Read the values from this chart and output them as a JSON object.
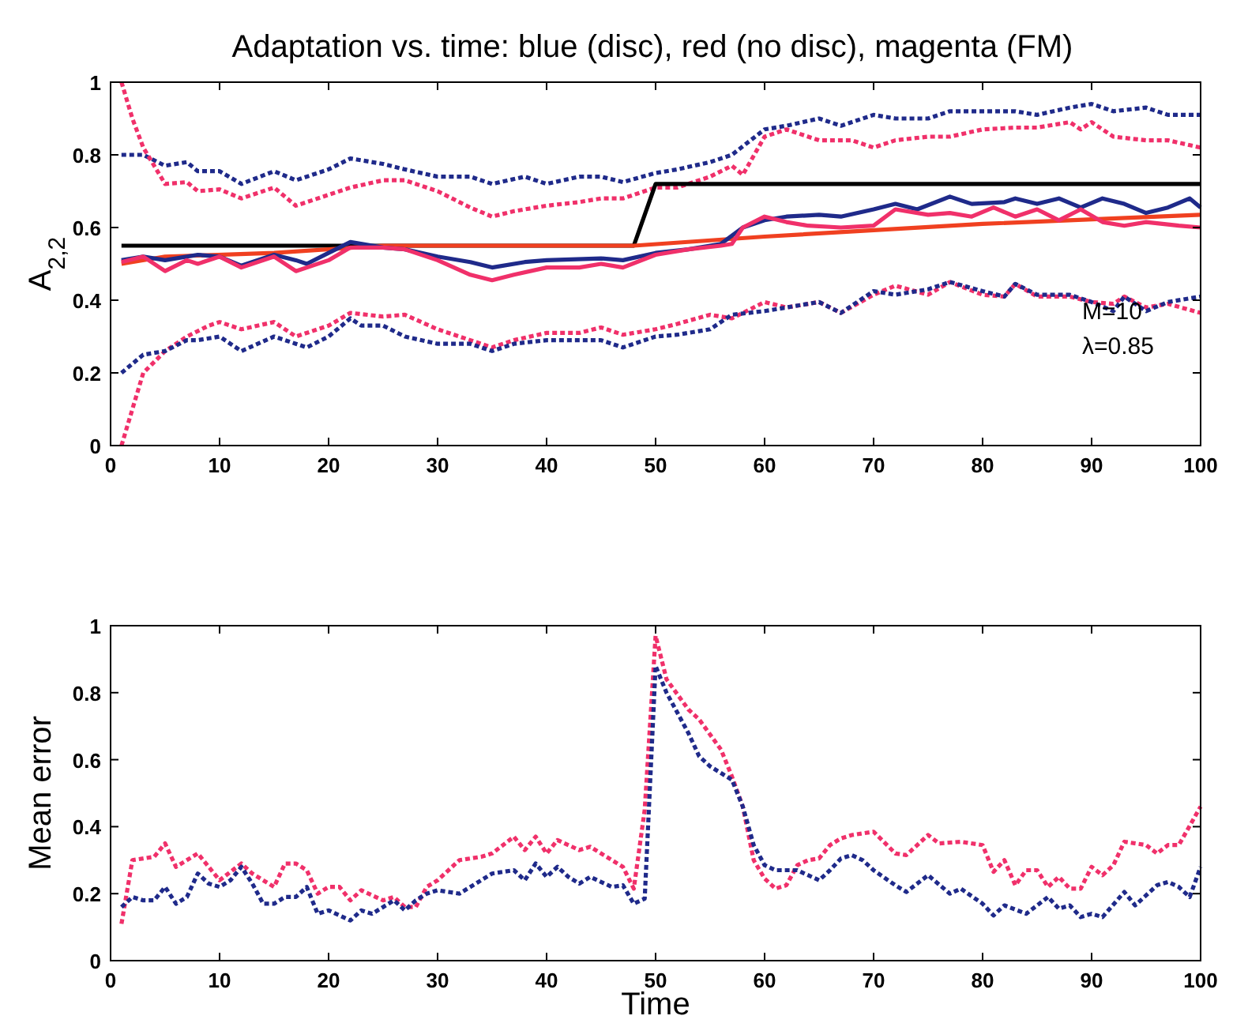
{
  "chart_data": [
    {
      "type": "line",
      "title": "Adaptation vs. time: blue (disc), red (no disc), magenta (FM)",
      "ylabel": "A$_{2,2}$",
      "annotations": [
        "M=10",
        "λ=0.85"
      ],
      "xlim": [
        0,
        100
      ],
      "xticks": [
        0,
        10,
        20,
        30,
        40,
        50,
        60,
        70,
        80,
        90,
        100
      ],
      "ylim": [
        0,
        1
      ],
      "yticks": [
        0,
        0.2,
        0.4,
        0.6,
        0.8,
        1
      ],
      "grid": false,
      "series": [
        {
          "color": "#1f2a8a",
          "line_style": "dotted",
          "x": [
            1,
            3,
            5,
            7,
            8,
            10,
            12,
            15,
            17,
            20,
            22,
            25,
            27,
            30,
            33,
            35,
            38,
            40,
            43,
            45,
            47,
            50,
            52,
            55,
            57,
            60,
            62,
            65,
            67,
            70,
            72,
            75,
            77,
            80,
            83,
            85,
            88,
            90,
            92,
            95,
            97,
            100
          ],
          "values": [
            0.8,
            0.8,
            0.77,
            0.78,
            0.755,
            0.755,
            0.72,
            0.755,
            0.73,
            0.76,
            0.79,
            0.775,
            0.76,
            0.74,
            0.74,
            0.72,
            0.74,
            0.72,
            0.74,
            0.74,
            0.725,
            0.75,
            0.76,
            0.78,
            0.8,
            0.87,
            0.88,
            0.9,
            0.88,
            0.91,
            0.9,
            0.9,
            0.92,
            0.92,
            0.92,
            0.91,
            0.93,
            0.94,
            0.92,
            0.93,
            0.91,
            0.91
          ]
        },
        {
          "color": "#f0306a",
          "line_style": "dotted",
          "x": [
            1,
            2,
            3,
            5,
            7,
            8,
            10,
            12,
            15,
            17,
            20,
            22,
            25,
            27,
            30,
            33,
            35,
            37,
            40,
            43,
            45,
            47,
            50,
            52,
            55,
            57,
            58,
            60,
            62,
            65,
            68,
            70,
            72,
            75,
            77,
            80,
            83,
            85,
            88,
            89,
            90,
            92,
            95,
            97,
            100
          ],
          "values": [
            1,
            0.9,
            0.82,
            0.72,
            0.725,
            0.7,
            0.705,
            0.68,
            0.71,
            0.66,
            0.69,
            0.71,
            0.73,
            0.73,
            0.7,
            0.655,
            0.63,
            0.645,
            0.66,
            0.67,
            0.68,
            0.68,
            0.71,
            0.71,
            0.74,
            0.77,
            0.745,
            0.85,
            0.87,
            0.84,
            0.84,
            0.82,
            0.84,
            0.85,
            0.85,
            0.87,
            0.875,
            0.875,
            0.89,
            0.87,
            0.89,
            0.85,
            0.84,
            0.84,
            0.82
          ]
        },
        {
          "color": "#000000",
          "line_style": "solid",
          "x": [
            1,
            48,
            50,
            100
          ],
          "values": [
            0.55,
            0.55,
            0.72,
            0.72
          ]
        },
        {
          "color": "#f04020",
          "line_style": "solid",
          "x": [
            1,
            5,
            15,
            25,
            48,
            60,
            80,
            100
          ],
          "values": [
            0.5,
            0.52,
            0.53,
            0.55,
            0.55,
            0.575,
            0.61,
            0.635
          ]
        },
        {
          "color": "#1f2a8a",
          "line_style": "solid",
          "x": [
            1,
            3,
            5,
            8,
            10,
            12,
            15,
            17,
            18,
            20,
            22,
            25,
            27,
            30,
            33,
            35,
            38,
            40,
            45,
            47,
            50,
            53,
            56,
            58,
            60,
            62,
            65,
            67,
            70,
            72,
            74,
            77,
            79,
            82,
            83,
            85,
            87,
            89,
            91,
            93,
            95,
            97,
            99,
            100
          ],
          "values": [
            0.51,
            0.52,
            0.51,
            0.525,
            0.52,
            0.495,
            0.525,
            0.51,
            0.5,
            0.53,
            0.56,
            0.545,
            0.54,
            0.52,
            0.505,
            0.49,
            0.505,
            0.51,
            0.515,
            0.51,
            0.53,
            0.54,
            0.555,
            0.6,
            0.62,
            0.63,
            0.635,
            0.63,
            0.65,
            0.665,
            0.65,
            0.685,
            0.665,
            0.67,
            0.68,
            0.665,
            0.68,
            0.655,
            0.68,
            0.665,
            0.64,
            0.655,
            0.68,
            0.655
          ]
        },
        {
          "color": "#f0306a",
          "line_style": "solid",
          "x": [
            1,
            3,
            5,
            7,
            8,
            10,
            12,
            15,
            17,
            20,
            22,
            25,
            27,
            30,
            33,
            35,
            37,
            40,
            43,
            45,
            47,
            50,
            53,
            56,
            57,
            58,
            60,
            62,
            64,
            67,
            70,
            72,
            75,
            77,
            79,
            81,
            83,
            85,
            87,
            89,
            91,
            93,
            95,
            98,
            100
          ],
          "values": [
            0.505,
            0.52,
            0.48,
            0.51,
            0.5,
            0.52,
            0.49,
            0.52,
            0.48,
            0.51,
            0.545,
            0.545,
            0.54,
            0.51,
            0.47,
            0.455,
            0.47,
            0.49,
            0.49,
            0.5,
            0.49,
            0.525,
            0.54,
            0.55,
            0.555,
            0.6,
            0.63,
            0.615,
            0.605,
            0.6,
            0.605,
            0.65,
            0.635,
            0.64,
            0.63,
            0.655,
            0.63,
            0.65,
            0.62,
            0.65,
            0.615,
            0.605,
            0.615,
            0.605,
            0.6
          ]
        },
        {
          "color": "#f0306a",
          "line_style": "dotted",
          "x": [
            1,
            2,
            3,
            5,
            7,
            9,
            10,
            12,
            15,
            17,
            20,
            22,
            25,
            27,
            30,
            33,
            35,
            37,
            40,
            43,
            45,
            47,
            50,
            52,
            55,
            57,
            60,
            62,
            65,
            67,
            70,
            72,
            75,
            77,
            80,
            82,
            83,
            85,
            88,
            90,
            92,
            93,
            95,
            97,
            100
          ],
          "values": [
            0,
            0.1,
            0.2,
            0.26,
            0.3,
            0.33,
            0.34,
            0.32,
            0.34,
            0.3,
            0.33,
            0.365,
            0.355,
            0.36,
            0.32,
            0.29,
            0.27,
            0.29,
            0.31,
            0.31,
            0.325,
            0.305,
            0.32,
            0.335,
            0.36,
            0.35,
            0.395,
            0.38,
            0.395,
            0.365,
            0.415,
            0.44,
            0.415,
            0.45,
            0.415,
            0.41,
            0.445,
            0.41,
            0.41,
            0.395,
            0.39,
            0.41,
            0.38,
            0.39,
            0.365
          ]
        },
        {
          "color": "#1f2a8a",
          "line_style": "dotted",
          "x": [
            1,
            3,
            5,
            7,
            8,
            10,
            12,
            15,
            17,
            18,
            20,
            22,
            23,
            25,
            27,
            30,
            33,
            35,
            37,
            40,
            43,
            45,
            47,
            50,
            52,
            55,
            57,
            60,
            62,
            65,
            67,
            70,
            72,
            75,
            77,
            80,
            82,
            83,
            85,
            88,
            90,
            92,
            93,
            95,
            97,
            100
          ],
          "values": [
            0.2,
            0.25,
            0.26,
            0.29,
            0.29,
            0.3,
            0.26,
            0.3,
            0.28,
            0.27,
            0.3,
            0.35,
            0.33,
            0.33,
            0.3,
            0.28,
            0.28,
            0.26,
            0.28,
            0.29,
            0.29,
            0.29,
            0.27,
            0.3,
            0.305,
            0.32,
            0.36,
            0.37,
            0.38,
            0.395,
            0.365,
            0.425,
            0.415,
            0.43,
            0.45,
            0.425,
            0.41,
            0.445,
            0.415,
            0.415,
            0.395,
            0.37,
            0.41,
            0.37,
            0.395,
            0.41
          ]
        }
      ]
    },
    {
      "type": "line",
      "xlabel": "Time",
      "ylabel": "Mean error",
      "xlim": [
        0,
        100
      ],
      "xticks": [
        0,
        10,
        20,
        30,
        40,
        50,
        60,
        70,
        80,
        90,
        100
      ],
      "ylim": [
        0,
        1
      ],
      "yticks": [
        0,
        0.2,
        0.4,
        0.6,
        0.8,
        1
      ],
      "grid": false,
      "series": [
        {
          "color": "#f0306a",
          "line_style": "dotted",
          "x": [
            1,
            2,
            4,
            5,
            6,
            8,
            10,
            12,
            13,
            15,
            16,
            17,
            18,
            19,
            20,
            21,
            22,
            23,
            25,
            26,
            27,
            28,
            29,
            30,
            32,
            34,
            35,
            37,
            38,
            39,
            40,
            41,
            43,
            44,
            46,
            47,
            48,
            49,
            50,
            51,
            53,
            54,
            56,
            57,
            58,
            59,
            60,
            61,
            62,
            63,
            64,
            65,
            66,
            67,
            68,
            70,
            72,
            73,
            75,
            76,
            78,
            80,
            81,
            82,
            83,
            84,
            85,
            86,
            87,
            88,
            89,
            90,
            91,
            92,
            93,
            95,
            96,
            97,
            98,
            100
          ],
          "values": [
            0.11,
            0.3,
            0.31,
            0.35,
            0.28,
            0.32,
            0.24,
            0.29,
            0.26,
            0.22,
            0.29,
            0.29,
            0.27,
            0.2,
            0.22,
            0.22,
            0.18,
            0.21,
            0.18,
            0.19,
            0.16,
            0.16,
            0.22,
            0.24,
            0.3,
            0.31,
            0.32,
            0.37,
            0.33,
            0.37,
            0.32,
            0.36,
            0.33,
            0.34,
            0.3,
            0.28,
            0.215,
            0.45,
            0.97,
            0.84,
            0.75,
            0.72,
            0.63,
            0.55,
            0.46,
            0.3,
            0.245,
            0.215,
            0.225,
            0.285,
            0.3,
            0.305,
            0.345,
            0.365,
            0.375,
            0.385,
            0.32,
            0.315,
            0.375,
            0.35,
            0.355,
            0.345,
            0.265,
            0.3,
            0.225,
            0.27,
            0.27,
            0.22,
            0.25,
            0.215,
            0.215,
            0.28,
            0.255,
            0.285,
            0.355,
            0.345,
            0.32,
            0.345,
            0.345,
            0.46
          ]
        },
        {
          "color": "#1f2a8a",
          "line_style": "dotted",
          "x": [
            1,
            2,
            3,
            4,
            5,
            6,
            7,
            8,
            9,
            10,
            11,
            12,
            13,
            14,
            15,
            16,
            17,
            18,
            19,
            20,
            22,
            23,
            24,
            25,
            26,
            27,
            28,
            29,
            30,
            32,
            33,
            35,
            37,
            38,
            39,
            40,
            41,
            42,
            43,
            44,
            46,
            47,
            48,
            49,
            50,
            51,
            53,
            54,
            55,
            57,
            58,
            59,
            60,
            61,
            63,
            64,
            65,
            66,
            67,
            68,
            69,
            70,
            72,
            73,
            75,
            77,
            78,
            80,
            81,
            82,
            84,
            86,
            87,
            88,
            89,
            90,
            91,
            93,
            94,
            96,
            97,
            98,
            99,
            100
          ],
          "values": [
            0.16,
            0.19,
            0.18,
            0.18,
            0.22,
            0.17,
            0.19,
            0.26,
            0.23,
            0.22,
            0.24,
            0.28,
            0.23,
            0.17,
            0.17,
            0.19,
            0.19,
            0.22,
            0.14,
            0.15,
            0.12,
            0.15,
            0.14,
            0.16,
            0.18,
            0.15,
            0.18,
            0.2,
            0.21,
            0.2,
            0.22,
            0.26,
            0.27,
            0.24,
            0.29,
            0.25,
            0.28,
            0.25,
            0.23,
            0.25,
            0.22,
            0.225,
            0.17,
            0.185,
            0.88,
            0.8,
            0.68,
            0.61,
            0.58,
            0.54,
            0.46,
            0.345,
            0.285,
            0.27,
            0.27,
            0.255,
            0.24,
            0.27,
            0.305,
            0.315,
            0.3,
            0.27,
            0.225,
            0.205,
            0.255,
            0.2,
            0.215,
            0.17,
            0.135,
            0.165,
            0.14,
            0.19,
            0.155,
            0.165,
            0.13,
            0.14,
            0.13,
            0.205,
            0.165,
            0.225,
            0.235,
            0.22,
            0.19,
            0.28
          ]
        }
      ]
    }
  ]
}
